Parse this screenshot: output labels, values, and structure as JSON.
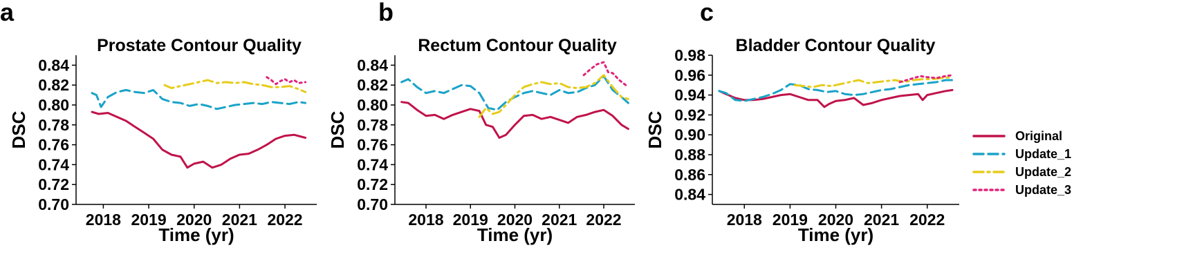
{
  "panel_letters": [
    "a",
    "b",
    "c"
  ],
  "legend": [
    {
      "label": "Original",
      "color": "#c0134a",
      "dash": "solid"
    },
    {
      "label": "Update_1",
      "color": "#1aa3c8",
      "dash": "dashed"
    },
    {
      "label": "Update_2",
      "color": "#e6cc1a",
      "dash": "dashdot"
    },
    {
      "label": "Update_3",
      "color": "#e0247a",
      "dash": "dotted"
    }
  ],
  "chart_data": [
    {
      "type": "line",
      "title": "Prostate Contour Quality",
      "xlabel": "Time (yr)",
      "ylabel": "DSC",
      "xlim": [
        2017.4,
        2022.7
      ],
      "ylim": [
        0.7,
        0.85
      ],
      "xticks": [
        2018,
        2019,
        2020,
        2021,
        2022
      ],
      "yticks": [
        0.7,
        0.72,
        0.74,
        0.76,
        0.78,
        0.8,
        0.82,
        0.84
      ],
      "series": [
        {
          "name": "Original",
          "x": [
            2017.75,
            2017.9,
            2018.1,
            2018.3,
            2018.5,
            2018.7,
            2018.9,
            2019.1,
            2019.3,
            2019.5,
            2019.7,
            2019.85,
            2020.0,
            2020.2,
            2020.4,
            2020.6,
            2020.8,
            2021.0,
            2021.2,
            2021.4,
            2021.6,
            2021.8,
            2022.0,
            2022.2,
            2022.45
          ],
          "y": [
            0.793,
            0.791,
            0.792,
            0.788,
            0.784,
            0.778,
            0.772,
            0.766,
            0.755,
            0.75,
            0.748,
            0.737,
            0.741,
            0.743,
            0.737,
            0.74,
            0.746,
            0.75,
            0.751,
            0.755,
            0.76,
            0.766,
            0.769,
            0.77,
            0.767
          ]
        },
        {
          "name": "Update_1",
          "x": [
            2017.75,
            2017.85,
            2017.95,
            2018.1,
            2018.3,
            2018.5,
            2018.7,
            2018.9,
            2019.1,
            2019.3,
            2019.5,
            2019.7,
            2019.9,
            2020.1,
            2020.3,
            2020.5,
            2020.7,
            2020.9,
            2021.1,
            2021.3,
            2021.5,
            2021.7,
            2021.9,
            2022.1,
            2022.3,
            2022.45
          ],
          "y": [
            0.812,
            0.81,
            0.798,
            0.808,
            0.813,
            0.815,
            0.813,
            0.812,
            0.815,
            0.806,
            0.803,
            0.802,
            0.799,
            0.801,
            0.799,
            0.796,
            0.798,
            0.8,
            0.801,
            0.802,
            0.801,
            0.803,
            0.802,
            0.801,
            0.803,
            0.802
          ]
        },
        {
          "name": "Update_2",
          "x": [
            2019.35,
            2019.5,
            2019.7,
            2019.9,
            2020.1,
            2020.3,
            2020.5,
            2020.7,
            2020.9,
            2021.1,
            2021.3,
            2021.5,
            2021.7,
            2021.9,
            2022.1,
            2022.3,
            2022.45
          ],
          "y": [
            0.82,
            0.817,
            0.819,
            0.821,
            0.823,
            0.825,
            0.822,
            0.823,
            0.822,
            0.823,
            0.821,
            0.82,
            0.818,
            0.818,
            0.819,
            0.816,
            0.813
          ]
        },
        {
          "name": "Update_3",
          "x": [
            2021.6,
            2021.7,
            2021.8,
            2021.9,
            2022.0,
            2022.1,
            2022.2,
            2022.3,
            2022.45
          ],
          "y": [
            0.828,
            0.825,
            0.821,
            0.824,
            0.826,
            0.823,
            0.825,
            0.822,
            0.823
          ]
        }
      ]
    },
    {
      "type": "line",
      "title": "Rectum Contour Quality",
      "xlabel": "Time (yr)",
      "ylabel": "DSC",
      "xlim": [
        2017.3,
        2022.7
      ],
      "ylim": [
        0.7,
        0.85
      ],
      "xticks": [
        2018,
        2019,
        2020,
        2021,
        2022
      ],
      "yticks": [
        0.7,
        0.72,
        0.74,
        0.76,
        0.78,
        0.8,
        0.82,
        0.84
      ],
      "series": [
        {
          "name": "Original",
          "x": [
            2017.45,
            2017.6,
            2017.8,
            2018.0,
            2018.2,
            2018.4,
            2018.6,
            2018.8,
            2019.0,
            2019.2,
            2019.35,
            2019.5,
            2019.65,
            2019.8,
            2020.0,
            2020.2,
            2020.4,
            2020.6,
            2020.8,
            2021.0,
            2021.2,
            2021.4,
            2021.6,
            2021.8,
            2022.0,
            2022.2,
            2022.4,
            2022.55
          ],
          "y": [
            0.803,
            0.802,
            0.795,
            0.789,
            0.79,
            0.786,
            0.79,
            0.793,
            0.796,
            0.794,
            0.78,
            0.778,
            0.767,
            0.77,
            0.78,
            0.789,
            0.79,
            0.786,
            0.788,
            0.785,
            0.782,
            0.788,
            0.79,
            0.793,
            0.795,
            0.789,
            0.78,
            0.776
          ]
        },
        {
          "name": "Update_1",
          "x": [
            2017.45,
            2017.6,
            2017.8,
            2018.0,
            2018.2,
            2018.4,
            2018.6,
            2018.8,
            2019.0,
            2019.2,
            2019.4,
            2019.6,
            2019.8,
            2020.0,
            2020.2,
            2020.4,
            2020.6,
            2020.8,
            2021.0,
            2021.2,
            2021.4,
            2021.6,
            2021.8,
            2022.0,
            2022.2,
            2022.4,
            2022.55
          ],
          "y": [
            0.823,
            0.826,
            0.818,
            0.812,
            0.814,
            0.812,
            0.816,
            0.82,
            0.819,
            0.812,
            0.797,
            0.795,
            0.803,
            0.808,
            0.812,
            0.814,
            0.812,
            0.81,
            0.815,
            0.812,
            0.813,
            0.817,
            0.82,
            0.829,
            0.815,
            0.808,
            0.802
          ]
        },
        {
          "name": "Update_2",
          "x": [
            2019.2,
            2019.35,
            2019.5,
            2019.65,
            2019.8,
            2020.0,
            2020.2,
            2020.4,
            2020.6,
            2020.8,
            2021.0,
            2021.2,
            2021.4,
            2021.6,
            2021.8,
            2022.0,
            2022.2,
            2022.4,
            2022.55
          ],
          "y": [
            0.788,
            0.797,
            0.791,
            0.793,
            0.8,
            0.81,
            0.818,
            0.821,
            0.823,
            0.821,
            0.822,
            0.818,
            0.817,
            0.818,
            0.822,
            0.83,
            0.818,
            0.808,
            0.806
          ]
        },
        {
          "name": "Update_3",
          "x": [
            2021.55,
            2021.7,
            2021.85,
            2022.0,
            2022.1,
            2022.2,
            2022.35,
            2022.55
          ],
          "y": [
            0.83,
            0.836,
            0.841,
            0.843,
            0.833,
            0.832,
            0.825,
            0.818
          ]
        }
      ]
    },
    {
      "type": "line",
      "title": "Bladder Contour Quality",
      "xlabel": "Time (yr)",
      "ylabel": "DSC",
      "xlim": [
        2017.3,
        2022.7
      ],
      "ylim": [
        0.83,
        0.98
      ],
      "xticks": [
        2018,
        2019,
        2020,
        2021,
        2022
      ],
      "yticks": [
        0.84,
        0.86,
        0.88,
        0.9,
        0.92,
        0.94,
        0.96,
        0.98
      ],
      "series": [
        {
          "name": "Original",
          "x": [
            2017.45,
            2017.6,
            2017.8,
            2018.0,
            2018.2,
            2018.4,
            2018.6,
            2018.8,
            2019.0,
            2019.2,
            2019.4,
            2019.6,
            2019.75,
            2019.85,
            2020.0,
            2020.2,
            2020.4,
            2020.6,
            2020.8,
            2021.0,
            2021.2,
            2021.4,
            2021.6,
            2021.8,
            2021.9,
            2022.0,
            2022.2,
            2022.4,
            2022.55
          ],
          "y": [
            0.944,
            0.941,
            0.937,
            0.935,
            0.935,
            0.936,
            0.938,
            0.94,
            0.941,
            0.938,
            0.935,
            0.935,
            0.928,
            0.931,
            0.934,
            0.935,
            0.937,
            0.93,
            0.932,
            0.935,
            0.937,
            0.939,
            0.94,
            0.941,
            0.935,
            0.94,
            0.942,
            0.944,
            0.945
          ]
        },
        {
          "name": "Update_1",
          "x": [
            2017.45,
            2017.6,
            2017.8,
            2018.0,
            2018.2,
            2018.4,
            2018.6,
            2018.8,
            2019.0,
            2019.2,
            2019.4,
            2019.6,
            2019.8,
            2020.0,
            2020.2,
            2020.4,
            2020.6,
            2020.8,
            2021.0,
            2021.2,
            2021.4,
            2021.6,
            2021.8,
            2022.0,
            2022.2,
            2022.4,
            2022.55
          ],
          "y": [
            0.944,
            0.942,
            0.935,
            0.934,
            0.936,
            0.938,
            0.941,
            0.945,
            0.951,
            0.95,
            0.946,
            0.945,
            0.943,
            0.944,
            0.941,
            0.94,
            0.941,
            0.943,
            0.945,
            0.946,
            0.948,
            0.95,
            0.951,
            0.952,
            0.953,
            0.955,
            0.955
          ]
        },
        {
          "name": "Update_2",
          "x": [
            2019.1,
            2019.3,
            2019.5,
            2019.7,
            2019.9,
            2020.1,
            2020.3,
            2020.5,
            2020.7,
            2020.9,
            2021.1,
            2021.3,
            2021.5,
            2021.7,
            2021.9,
            2022.1,
            2022.3,
            2022.55
          ],
          "y": [
            0.95,
            0.949,
            0.948,
            0.95,
            0.949,
            0.951,
            0.953,
            0.955,
            0.952,
            0.953,
            0.954,
            0.955,
            0.953,
            0.955,
            0.956,
            0.956,
            0.957,
            0.958
          ]
        },
        {
          "name": "Update_3",
          "x": [
            2021.4,
            2021.55,
            2021.7,
            2021.85,
            2022.0,
            2022.2,
            2022.4,
            2022.55
          ],
          "y": [
            0.953,
            0.955,
            0.957,
            0.959,
            0.958,
            0.957,
            0.959,
            0.96
          ]
        }
      ]
    }
  ]
}
